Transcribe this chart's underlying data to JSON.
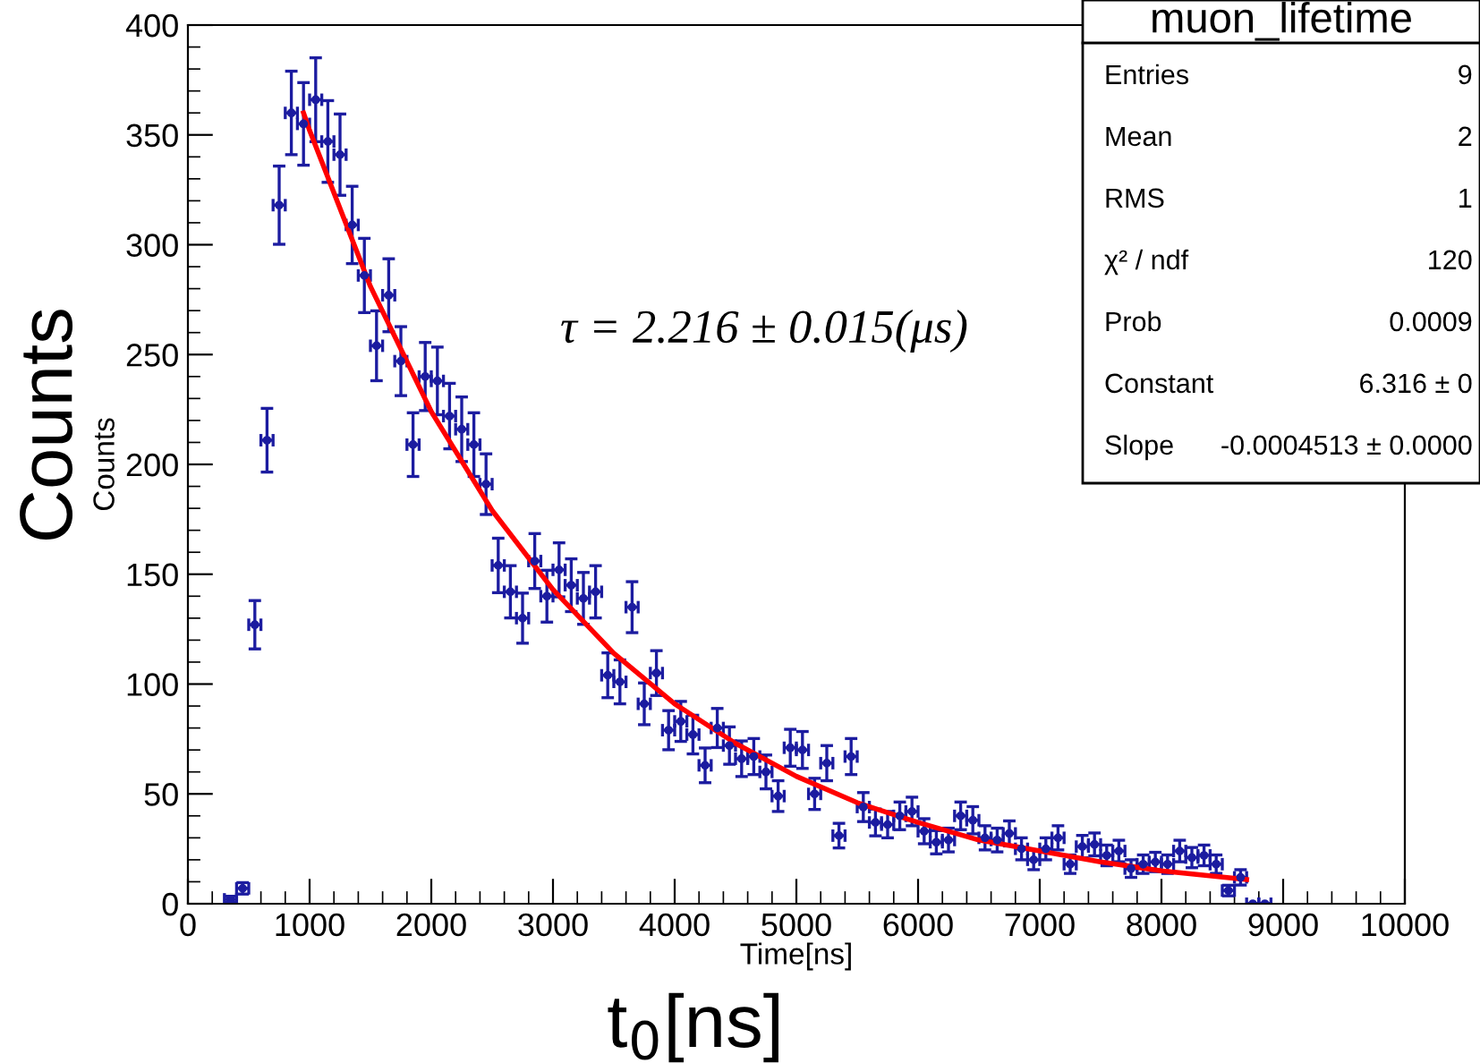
{
  "chart_data": {
    "type": "scatter",
    "xlabel": "Time[ns]",
    "ylabel": "Counts",
    "xlim": [
      0,
      10000
    ],
    "xticks": [
      0,
      1000,
      2000,
      3000,
      4000,
      5000,
      6000,
      7000,
      8000,
      9000,
      10000
    ],
    "ylim": [
      0,
      400
    ],
    "yticks": [
      0,
      50,
      100,
      150,
      200,
      250,
      300,
      350,
      400
    ],
    "grid": false,
    "series": [
      {
        "color": "#1c1ca0",
        "marker": "circle",
        "x": [
          350,
          450,
          550,
          650,
          750,
          850,
          950,
          1050,
          1150,
          1250,
          1350,
          1450,
          1550,
          1650,
          1750,
          1850,
          1950,
          2050,
          2150,
          2250,
          2350,
          2450,
          2550,
          2650,
          2750,
          2850,
          2950,
          3050,
          3150,
          3250,
          3350,
          3450,
          3550,
          3650,
          3750,
          3850,
          3950,
          4050,
          4150,
          4250,
          4350,
          4450,
          4550,
          4650,
          4750,
          4850,
          4950,
          5050,
          5150,
          5250,
          5350,
          5450,
          5550,
          5650,
          5750,
          5850,
          5950,
          6050,
          6150,
          6250,
          6350,
          6450,
          6550,
          6650,
          6750,
          6850,
          6950,
          7050,
          7150,
          7250,
          7350,
          7450,
          7550,
          7650,
          7750,
          7850,
          7950,
          8050,
          8150,
          8250,
          8350,
          8450,
          8550,
          8650,
          8750,
          8850
        ],
        "values": [
          2,
          7,
          127,
          211,
          318,
          360,
          355,
          366,
          347,
          341,
          309,
          286,
          254,
          277,
          247,
          209,
          240,
          238,
          222,
          216,
          209,
          191,
          154,
          142,
          130,
          156,
          140,
          152,
          145,
          139,
          142,
          104,
          101,
          135,
          91,
          105,
          79,
          83,
          77,
          63,
          80,
          72,
          66,
          67,
          60,
          49,
          71,
          70,
          50,
          64,
          31,
          67,
          44,
          37,
          36,
          40,
          42,
          33,
          28,
          29,
          40,
          38,
          30,
          29,
          32,
          25,
          20,
          25,
          30,
          18,
          26,
          27,
          22,
          24,
          16,
          18,
          19,
          18,
          24,
          21,
          22,
          18,
          6,
          12,
          0,
          0
        ],
        "errors": [
          1.4,
          2.6,
          11,
          14.5,
          17.8,
          19,
          18.8,
          19.1,
          18.6,
          18.5,
          17.6,
          16.9,
          15.9,
          16.6,
          15.7,
          14.5,
          15.5,
          15.4,
          14.9,
          14.7,
          14.5,
          13.8,
          12.4,
          11.9,
          11.4,
          12.5,
          11.8,
          12.3,
          12,
          11.8,
          11.9,
          10.2,
          10,
          11.6,
          9.5,
          10.2,
          8.9,
          9.1,
          8.8,
          7.9,
          8.9,
          8.5,
          8.1,
          8.2,
          7.7,
          7,
          8.4,
          8.4,
          7.1,
          8,
          5.6,
          8.2,
          6.6,
          6.1,
          6,
          6.3,
          6.5,
          5.7,
          5.3,
          5.4,
          6.3,
          6.2,
          5.5,
          5.4,
          5.7,
          5,
          4.5,
          5,
          5.5,
          4.2,
          5.1,
          5.2,
          4.7,
          4.9,
          4,
          4.2,
          4.4,
          4.2,
          4.9,
          4.6,
          4.7,
          4.2,
          2.4,
          3.5,
          0,
          0
        ],
        "xerrors": [
          50,
          50,
          50,
          50,
          50,
          50,
          50,
          50,
          50,
          50,
          50,
          50,
          50,
          50,
          50,
          50,
          50,
          50,
          50,
          50,
          50,
          50,
          50,
          50,
          50,
          50,
          50,
          50,
          50,
          50,
          50,
          50,
          50,
          50,
          50,
          50,
          50,
          50,
          50,
          50,
          50,
          50,
          50,
          50,
          50,
          50,
          50,
          50,
          50,
          50,
          50,
          50,
          50,
          50,
          50,
          50,
          50,
          50,
          50,
          50,
          50,
          50,
          50,
          50,
          50,
          50,
          50,
          50,
          50,
          50,
          50,
          50,
          50,
          50,
          50,
          50,
          50,
          50,
          50,
          50,
          50,
          50,
          50,
          50,
          50,
          50
        ]
      },
      {
        "type": "line",
        "color": "#ff0000",
        "x": [
          950,
          1000,
          1500,
          2000,
          2500,
          3000,
          3500,
          4000,
          4500,
          5000,
          5500,
          6000,
          6500,
          7000,
          7500,
          8000,
          8700
        ],
        "values": [
          360,
          352,
          281,
          224,
          179,
          143,
          114,
          91,
          73,
          58,
          46,
          37,
          29,
          24,
          19,
          15,
          11
        ]
      }
    ],
    "annotations": [
      "τ = 2.216 ± 0.015(μs)",
      "Counts",
      "t$_{0}$[ns]",
      "muon_lifetime",
      "Entries",
      "9",
      "Mean",
      "2",
      "RMS",
      "1",
      "χ² / ndf",
      "120",
      "Prob",
      "0.0009",
      "Constant",
      "6.316 ± 0",
      "Slope",
      "-0.0004513 ± 0.0000"
    ]
  }
}
